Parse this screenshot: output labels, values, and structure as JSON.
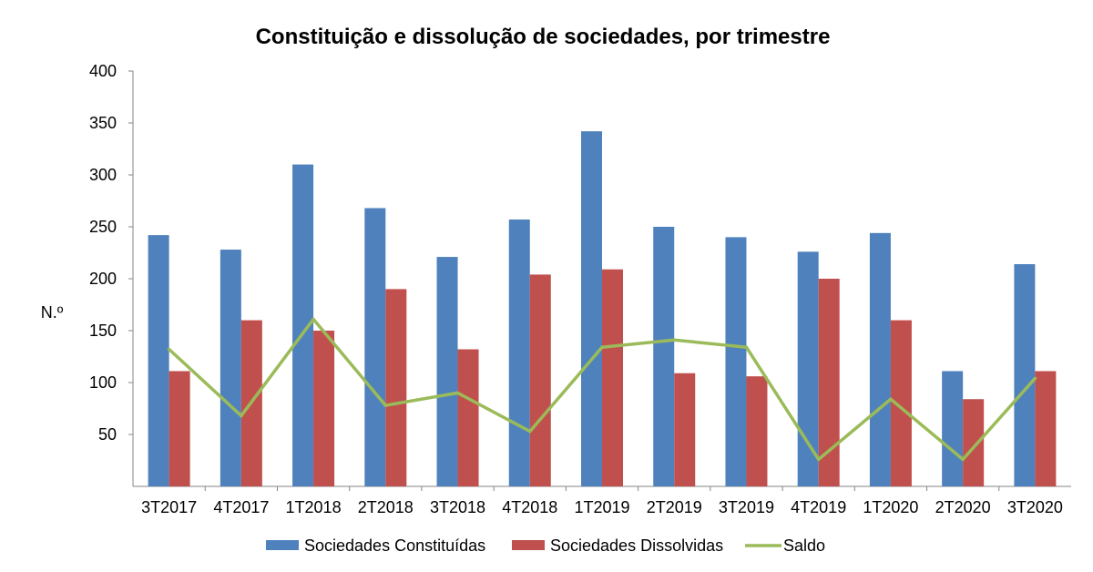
{
  "chart_data": {
    "type": "bar",
    "title": "Constituição e dissolução de sociedades, por trimestre",
    "ylabel": "N.º",
    "xlabel": "",
    "ylim": [
      0,
      400
    ],
    "yticks": [
      50,
      100,
      150,
      200,
      250,
      300,
      350,
      400
    ],
    "categories": [
      "3T2017",
      "4T2017",
      "1T2018",
      "2T2018",
      "3T2018",
      "4T2018",
      "1T2019",
      "2T2019",
      "3T2019",
      "4T2019",
      "1T2020",
      "2T2020",
      "3T2020"
    ],
    "series": [
      {
        "name": "Sociedades Constituídas",
        "kind": "bar",
        "color": "#4F81BD",
        "values": [
          242,
          228,
          310,
          268,
          221,
          257,
          342,
          250,
          240,
          226,
          244,
          111,
          214
        ]
      },
      {
        "name": "Sociedades Dissolvidas",
        "kind": "bar",
        "color": "#C0504D",
        "values": [
          111,
          160,
          150,
          190,
          132,
          204,
          209,
          109,
          106,
          200,
          160,
          84,
          111
        ]
      },
      {
        "name": "Saldo",
        "kind": "line",
        "color": "#9BBB59",
        "values": [
          132,
          68,
          161,
          78,
          90,
          53,
          134,
          141,
          134,
          26,
          84,
          26,
          104
        ]
      }
    ],
    "grid": false,
    "legend_position": "bottom"
  }
}
